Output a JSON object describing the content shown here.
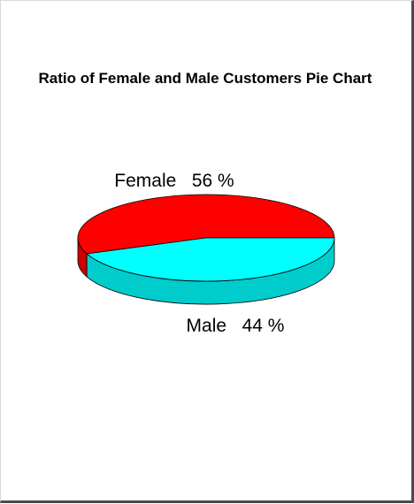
{
  "chart_data": {
    "type": "pie",
    "title": "Ratio of Female and Male Customers Pie Chart",
    "categories": [
      "Female",
      "Male"
    ],
    "values": [
      56,
      44
    ],
    "unit": "%",
    "colors": [
      "#ff0000",
      "#00ffff"
    ],
    "side_colors": [
      "#cc0000",
      "#00cccc"
    ],
    "three_d": true,
    "legend": "none"
  }
}
